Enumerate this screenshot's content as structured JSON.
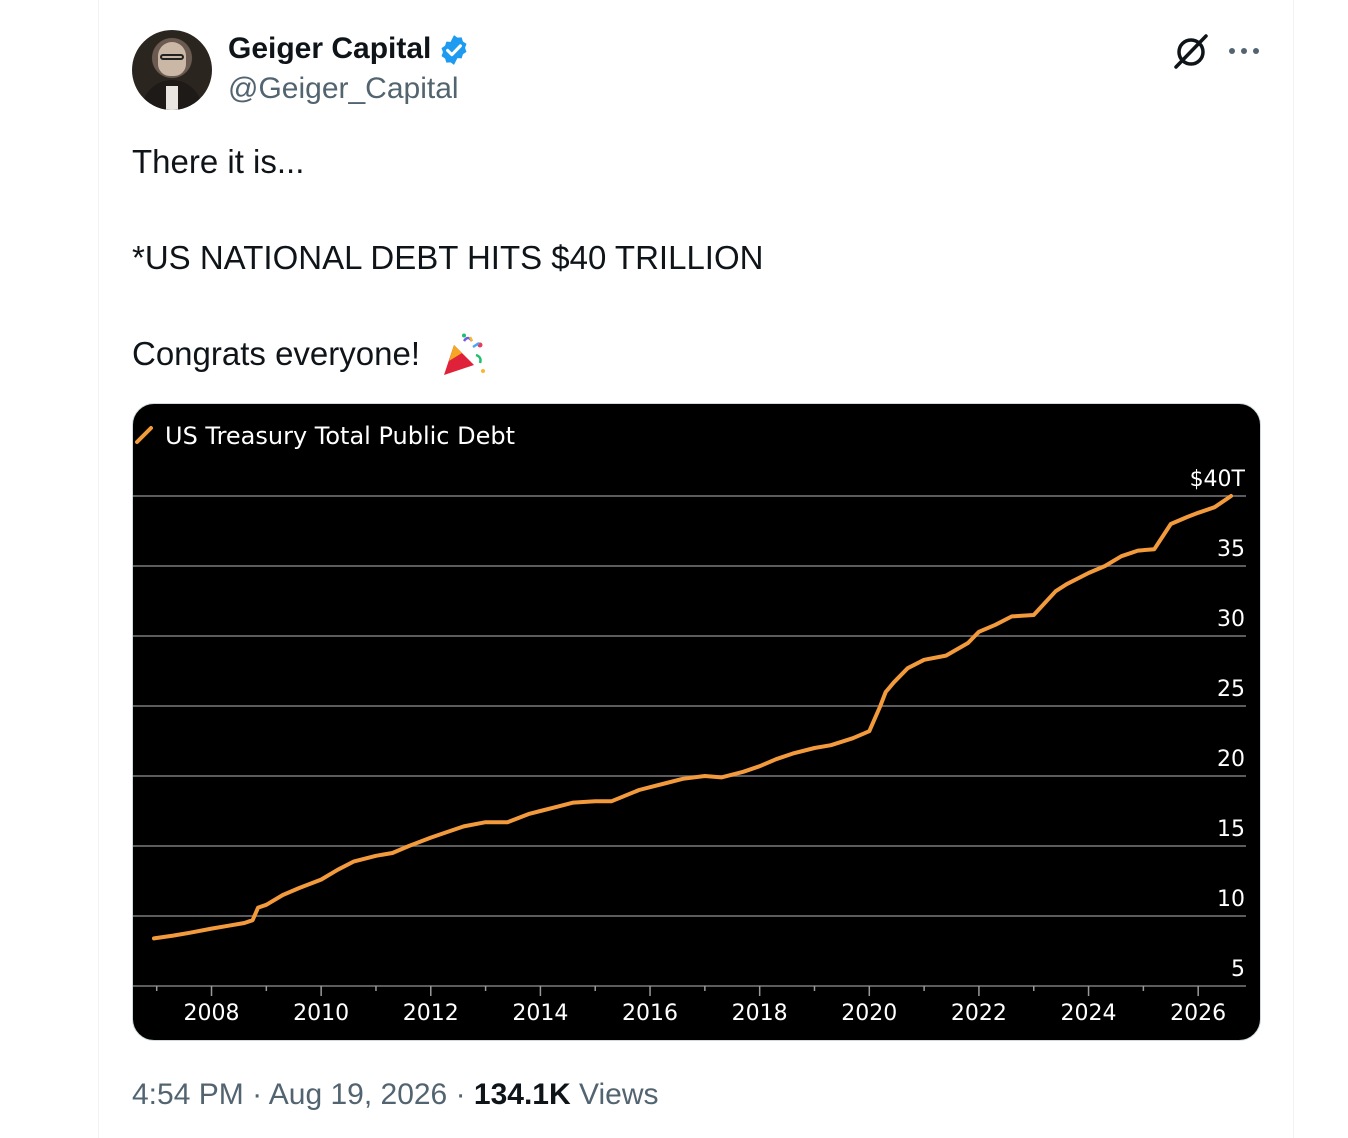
{
  "author": {
    "name": "Geiger Capital",
    "handle": "@Geiger_Capital",
    "verified_color": "#1d9bf0"
  },
  "icons": {
    "grok": "grok-icon",
    "more": "more-icon",
    "verified": "verified-badge-icon",
    "emoji": "party-popper-emoji"
  },
  "tweet": {
    "line1": "There it is...",
    "line2": "*US NATIONAL DEBT HITS $40 TRILLION",
    "line3": "Congrats everyone!"
  },
  "meta": {
    "time": "4:54 PM",
    "sep1": " · ",
    "date": "Aug 19, 2026",
    "sep2": " · ",
    "views": "134.1K",
    "views_label": " Views"
  },
  "chart_data": {
    "type": "line",
    "legend": "US Treasury Total Public Debt",
    "series_color": "#f29a3c",
    "background": "#000000",
    "grid": true,
    "ylim": [
      5,
      40
    ],
    "yticks": [
      5,
      10,
      15,
      20,
      25,
      30,
      35,
      40
    ],
    "ytick_labels": [
      "5",
      "10",
      "15",
      "20",
      "25",
      "30",
      "35",
      "$40T"
    ],
    "xlim": [
      2006.75,
      2027.0
    ],
    "xticks": [
      2008,
      2010,
      2012,
      2014,
      2016,
      2018,
      2020,
      2022,
      2024,
      2026
    ],
    "xtick_labels": [
      "2008",
      "2010",
      "2012",
      "2014",
      "2016",
      "2018",
      "2020",
      "2022",
      "2024",
      "2026"
    ],
    "series": [
      {
        "x": [
          2006.95,
          2007.3,
          2007.6,
          2008.0,
          2008.3,
          2008.6,
          2008.75,
          2008.85,
          2009.0,
          2009.3,
          2009.6,
          2010.0,
          2010.3,
          2010.6,
          2011.0,
          2011.3,
          2011.6,
          2012.0,
          2012.3,
          2012.6,
          2013.0,
          2013.4,
          2013.8,
          2014.0,
          2014.3,
          2014.6,
          2015.0,
          2015.3,
          2015.8,
          2016.0,
          2016.3,
          2016.6,
          2017.0,
          2017.3,
          2017.7,
          2018.0,
          2018.3,
          2018.6,
          2019.0,
          2019.3,
          2019.7,
          2020.0,
          2020.2,
          2020.3,
          2020.45,
          2020.7,
          2021.0,
          2021.4,
          2021.8,
          2022.0,
          2022.3,
          2022.6,
          2023.0,
          2023.4,
          2023.6,
          2024.0,
          2024.3,
          2024.6,
          2024.9,
          2025.2,
          2025.5,
          2025.8,
          2026.0,
          2026.3,
          2026.6
        ],
        "y": [
          8.4,
          8.6,
          8.8,
          9.1,
          9.3,
          9.5,
          9.7,
          10.6,
          10.8,
          11.5,
          12.0,
          12.6,
          13.3,
          13.9,
          14.3,
          14.5,
          15.0,
          15.6,
          16.0,
          16.4,
          16.7,
          16.7,
          17.3,
          17.5,
          17.8,
          18.1,
          18.2,
          18.2,
          19.0,
          19.2,
          19.5,
          19.8,
          20.0,
          19.9,
          20.3,
          20.7,
          21.2,
          21.6,
          22.0,
          22.2,
          22.7,
          23.2,
          25.0,
          26.0,
          26.7,
          27.7,
          28.3,
          28.6,
          29.5,
          30.3,
          30.8,
          31.4,
          31.5,
          33.2,
          33.7,
          34.5,
          35.0,
          35.7,
          36.1,
          36.2,
          38.0,
          38.5,
          38.8,
          39.2,
          40.0
        ]
      }
    ]
  }
}
